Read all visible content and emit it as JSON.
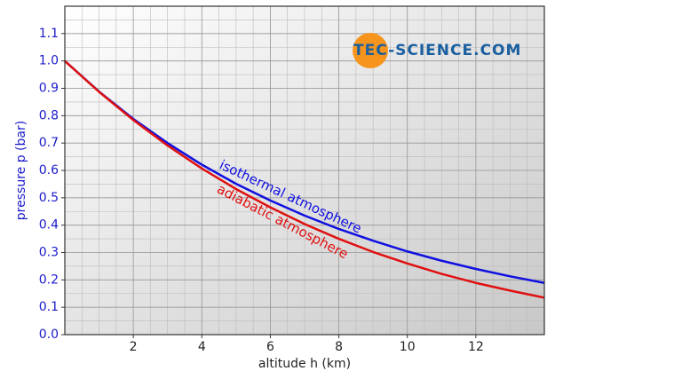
{
  "chart_data": {
    "type": "line",
    "x_label": "altitude h (km)",
    "y_label": "pressure p (bar)",
    "logo": "TEC-SCIENCE.COM",
    "x": [
      0,
      1,
      2,
      3,
      4,
      5,
      6,
      7,
      8,
      9,
      10,
      11,
      12,
      13,
      14
    ],
    "series": [
      {
        "name": "isothermal atmosphere",
        "color": "#1010e0",
        "values": [
          1.0,
          0.888,
          0.788,
          0.7,
          0.621,
          0.551,
          0.49,
          0.435,
          0.386,
          0.343,
          0.304,
          0.27,
          0.24,
          0.213,
          0.189
        ]
      },
      {
        "name": "adiabatic atmosphere",
        "color": "#e01010",
        "values": [
          1.0,
          0.887,
          0.784,
          0.691,
          0.607,
          0.532,
          0.465,
          0.404,
          0.35,
          0.302,
          0.26,
          0.222,
          0.189,
          0.161,
          0.135
        ]
      }
    ],
    "xlim": [
      0,
      14
    ],
    "ylim": [
      0,
      1.2
    ],
    "xticks": [
      2,
      4,
      6,
      8,
      10,
      12
    ],
    "yticks": [
      {
        "value": 0,
        "label": "0.0"
      },
      0.1,
      0.2,
      0.3,
      0.4,
      0.5,
      0.6,
      0.7,
      0.8,
      0.9,
      {
        "value": 1,
        "label": "1.0"
      },
      1.1
    ],
    "grid": true
  }
}
